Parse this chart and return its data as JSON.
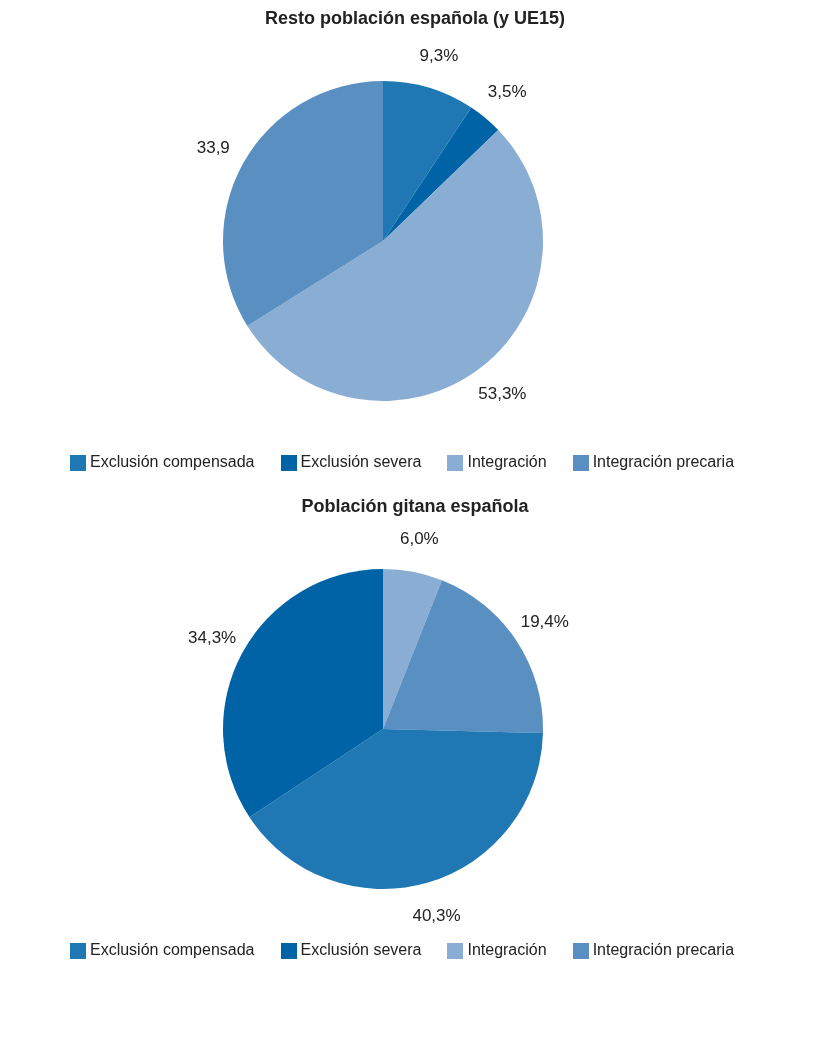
{
  "chart_data": [
    {
      "type": "pie",
      "title": "Resto población española (y UE15)",
      "categories": [
        "Exclusión compensada",
        "Exclusión severa",
        "Integración",
        "Integración precaria"
      ],
      "values": [
        9.3,
        3.5,
        53.3,
        33.9
      ],
      "colors": [
        "#1f78b4",
        "#0063a6",
        "#8aadd4",
        "#5a8fc2"
      ],
      "value_labels": [
        "9,3%",
        "3,5%",
        "53,3%",
        "33,9"
      ],
      "legend": "bottom"
    },
    {
      "type": "pie",
      "title": "Población gitana española",
      "categories": [
        "Integración",
        "Integración precaria",
        "Exclusión compensada",
        "Exclusión severa"
      ],
      "values": [
        6.0,
        19.4,
        40.3,
        34.3
      ],
      "colors": [
        "#8aadd4",
        "#5a8fc2",
        "#1f78b4",
        "#0063a6"
      ],
      "value_labels": [
        "6,0%",
        "19,4%",
        "40,3%",
        "34,3%"
      ],
      "legend": "bottom"
    }
  ]
}
